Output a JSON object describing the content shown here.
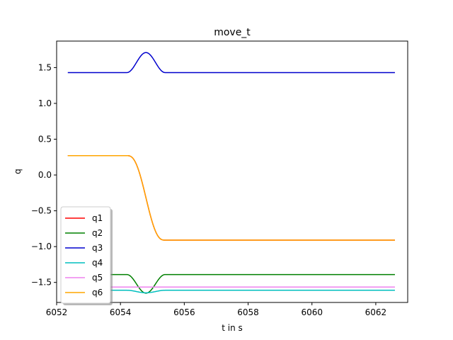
{
  "chart_data": {
    "type": "line",
    "title": "move_t",
    "xlabel": "t in s",
    "ylabel": "q",
    "xlim": [
      6052.0,
      6063.0
    ],
    "ylim": [
      -1.78,
      1.87
    ],
    "xticks": [
      6052,
      6054,
      6056,
      6058,
      6060,
      6062
    ],
    "xtick_labels": [
      "6052",
      "6054",
      "6056",
      "6058",
      "6060",
      "6062"
    ],
    "yticks": [
      -1.5,
      -1.0,
      -0.5,
      0.0,
      0.5,
      1.0,
      1.5
    ],
    "ytick_labels": [
      "−1.5",
      "−1.0",
      "−0.5",
      "0.0",
      "0.5",
      "1.0",
      "1.5"
    ],
    "grid": false,
    "legend": "lower-left",
    "motion": {
      "t_start": 6052.35,
      "t_move_start": 6054.2,
      "t_move_end": 6055.4,
      "t_end": 6062.6
    },
    "series": [
      {
        "name": "q1",
        "color": "#ff0000",
        "kind": "sigmoid",
        "y0": 0.27,
        "y1": -0.91
      },
      {
        "name": "q2",
        "color": "#008000",
        "kind": "bump",
        "base": -1.39,
        "peak": -1.65
      },
      {
        "name": "q3",
        "color": "#0000cd",
        "kind": "bump",
        "base": 1.43,
        "peak": 1.71
      },
      {
        "name": "q4",
        "color": "#00bfbf",
        "kind": "bump",
        "base": -1.61,
        "peak": -1.645
      },
      {
        "name": "q5",
        "color": "#ee82ee",
        "kind": "flat",
        "base": -1.565
      },
      {
        "name": "q6",
        "color": "#ffa500",
        "kind": "sigmoid",
        "y0": 0.27,
        "y1": -0.91
      }
    ]
  }
}
